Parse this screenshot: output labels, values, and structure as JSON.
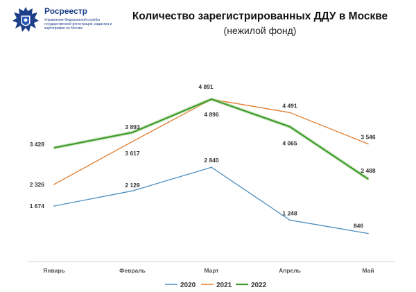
{
  "header": {
    "org_name": "Росреестр",
    "org_subtitle": "Управление Федеральной службы государственной регистрации, кадастра и картографии по Москве",
    "title": "Количество зарегистрированных ДДУ в Москве",
    "subtitle": "(нежилой фонд)"
  },
  "colors": {
    "brand": "#1d3f8a",
    "s2020": "#4e8fbf",
    "s2021": "#e07b2c",
    "s2022": "#3f9a2a"
  },
  "chart_data": {
    "type": "line",
    "categories": [
      "Январь",
      "Февраль",
      "Март",
      "Апрель",
      "Май"
    ],
    "series": [
      {
        "name": "2020",
        "values": [
          1674,
          2129,
          2840,
          1248,
          846
        ],
        "labels": [
          "1 674",
          "2 129",
          "2 840",
          "1 248",
          "846"
        ],
        "color": "#4e8fbf"
      },
      {
        "name": "2021",
        "values": [
          2326,
          3617,
          4891,
          4491,
          3546
        ],
        "labels": [
          "2 326",
          "3 617",
          "4 891",
          "4 491",
          "3 546"
        ],
        "color": "#e07b2c"
      },
      {
        "name": "2022",
        "values": [
          3428,
          3893,
          4896,
          4065,
          2488
        ],
        "labels": [
          "3 428",
          "3 893",
          "4 896",
          "4 065",
          "2 488"
        ],
        "color": "#3f9a2a"
      }
    ],
    "ylim": [
      0,
      5800
    ],
    "grid": false,
    "legend": "bottom"
  }
}
